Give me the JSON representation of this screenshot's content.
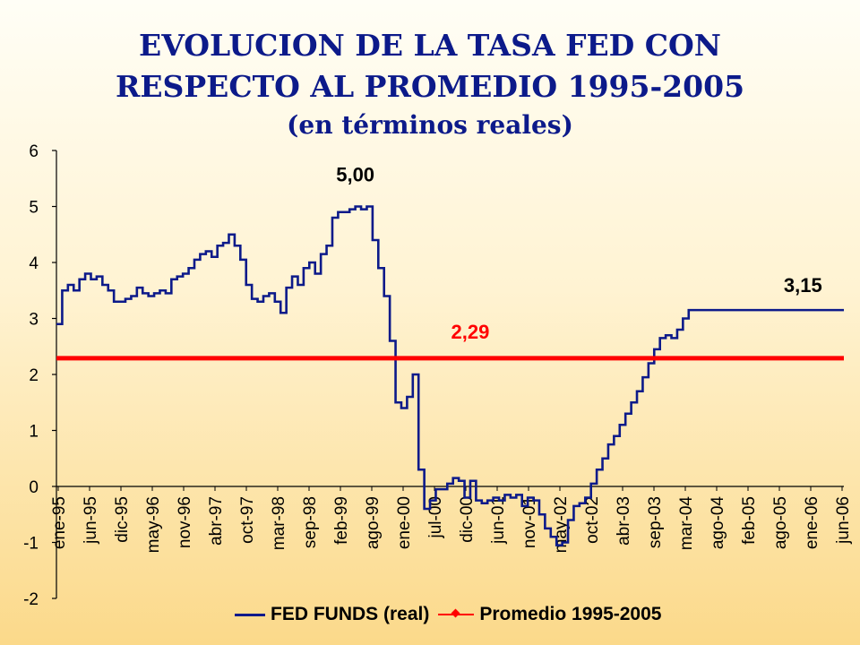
{
  "title": {
    "line1": "EVOLUCION DE LA TASA FED CON",
    "line2": "RESPECTO AL PROMEDIO 1995-2005",
    "line3": "(en términos reales)"
  },
  "colors": {
    "series": "#0c1a8a",
    "average": "#ff0000",
    "title": "#0c1a8a"
  },
  "chart_data": {
    "type": "line",
    "title": "EVOLUCION DE LA TASA FED CON RESPECTO AL PROMEDIO 1995-2005 (en términos reales)",
    "xlabel": "",
    "ylabel": "",
    "ylim": [
      -2,
      6
    ],
    "yticks": [
      6,
      5,
      4,
      3,
      2,
      1,
      0,
      -1,
      -2
    ],
    "categories": [
      "ene-95",
      "jun-95",
      "dic-95",
      "may-96",
      "nov-96",
      "abr-97",
      "oct-97",
      "mar-98",
      "sep-98",
      "feb-99",
      "ago-99",
      "ene-00",
      "jul-00",
      "dic-00",
      "jun-01",
      "nov-01",
      "may-02",
      "oct-02",
      "abr-03",
      "sep-03",
      "mar-04",
      "ago-04",
      "feb-05",
      "ago-05",
      "ene-06",
      "jun-06"
    ],
    "x_start_index": 0,
    "x_end_index": 137,
    "series": [
      {
        "name": "FED FUNDS (real)",
        "x": [
          0,
          1,
          2,
          3,
          4,
          5,
          6,
          7,
          8,
          9,
          10,
          11,
          12,
          13,
          14,
          15,
          16,
          17,
          18,
          19,
          20,
          21,
          22,
          23,
          24,
          25,
          26,
          27,
          28,
          29,
          30,
          31,
          32,
          33,
          34,
          35,
          36,
          37,
          38,
          39,
          40,
          41,
          42,
          43,
          44,
          45,
          46,
          47,
          48,
          49,
          50,
          51,
          52,
          53,
          54,
          55,
          56,
          57,
          58,
          59,
          60,
          61,
          62,
          63,
          64,
          65,
          66,
          67,
          68,
          69,
          70,
          71,
          72,
          73,
          74,
          75,
          76,
          77,
          78,
          79,
          80,
          81,
          82,
          83,
          84,
          85,
          86,
          87,
          88,
          89,
          90,
          91,
          92,
          93,
          94,
          95,
          96,
          97,
          98,
          99,
          100,
          101,
          102,
          103,
          104,
          105,
          106,
          107,
          108,
          109,
          110,
          111,
          112,
          113,
          114,
          115,
          116,
          117,
          118,
          119,
          120,
          121,
          122,
          123,
          124,
          125,
          126,
          127,
          128,
          129,
          130,
          131,
          132,
          133,
          134,
          135,
          136,
          137
        ],
        "values": [
          2.9,
          3.5,
          3.6,
          3.5,
          3.7,
          3.8,
          3.7,
          3.75,
          3.6,
          3.5,
          3.3,
          3.3,
          3.35,
          3.4,
          3.55,
          3.45,
          3.4,
          3.45,
          3.5,
          3.45,
          3.7,
          3.75,
          3.8,
          3.9,
          4.05,
          4.15,
          4.2,
          4.1,
          4.3,
          4.35,
          4.5,
          4.3,
          4.05,
          3.6,
          3.35,
          3.3,
          3.4,
          3.45,
          3.3,
          3.1,
          3.55,
          3.75,
          3.6,
          3.9,
          4.0,
          3.8,
          4.15,
          4.3,
          4.8,
          4.9,
          4.9,
          4.95,
          5.0,
          4.95,
          5.0,
          4.4,
          3.9,
          3.4,
          2.6,
          1.5,
          1.4,
          1.6,
          2.0,
          0.3,
          -0.4,
          -0.25,
          -0.05,
          -0.05,
          0.05,
          0.15,
          0.1,
          -0.2,
          0.1,
          -0.25,
          -0.3,
          -0.25,
          -0.2,
          -0.25,
          -0.15,
          -0.2,
          -0.15,
          -0.35,
          -0.2,
          -0.25,
          -0.5,
          -0.75,
          -0.9,
          -1.05,
          -1.0,
          -0.6,
          -0.35,
          -0.3,
          -0.2,
          0.05,
          0.3,
          0.5,
          0.75,
          0.9,
          1.1,
          1.3,
          1.5,
          1.7,
          1.95,
          2.2,
          2.45,
          2.65,
          2.7,
          2.65,
          2.8,
          3.0,
          3.15,
          3.15,
          3.15,
          3.15,
          3.15,
          3.15,
          3.15,
          3.15,
          3.15,
          3.15,
          3.15,
          3.15,
          3.15,
          3.15,
          3.15,
          3.15,
          3.15,
          3.15,
          3.15,
          3.15,
          3.15,
          3.15,
          3.15,
          3.15,
          3.15,
          3.15,
          3.15,
          3.15
        ],
        "color": "#0c1a8a"
      },
      {
        "name": "Promedio 1995-2005",
        "x": [
          0,
          137
        ],
        "values": [
          2.29,
          2.29
        ],
        "color": "#ff0000"
      }
    ],
    "annotations": [
      {
        "label": "5,00",
        "x": 52,
        "y": 5.0
      },
      {
        "label": "2,29",
        "x": 72,
        "y": 2.29
      },
      {
        "label": "3,15",
        "x": 133,
        "y": 3.15
      }
    ],
    "legend": [
      "FED FUNDS (real)",
      "Promedio 1995-2005"
    ],
    "legend_position": "bottom",
    "grid": false
  }
}
